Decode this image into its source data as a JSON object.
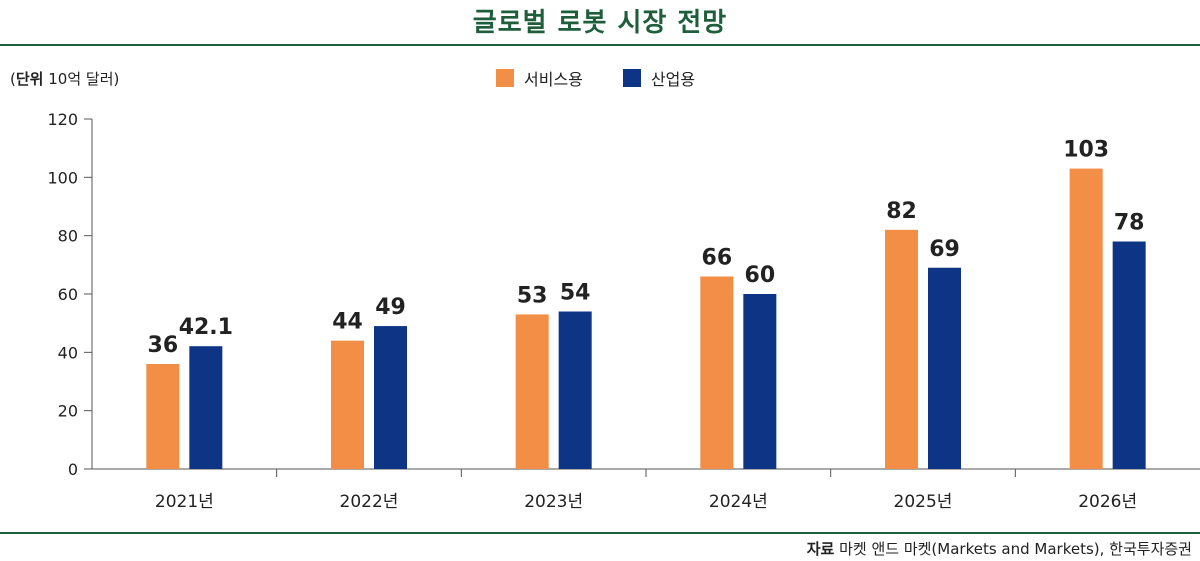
{
  "title": "글로벌 로봇 시장 전망",
  "unit": {
    "bold": "단위",
    "rest": " 10억 달러"
  },
  "source": {
    "bold": "자료",
    "rest": " 마켓 앤드 마켓(Markets and Markets), 한국투자증권"
  },
  "colors": {
    "service": "#f28e45",
    "industrial": "#0e3486",
    "accent": "#1e5e3a"
  },
  "chart_data": {
    "type": "bar",
    "title": "글로벌 로봇 시장 전망",
    "ylabel": "(단위 10억 달러)",
    "xlabel": "",
    "categories": [
      "2021년",
      "2022년",
      "2023년",
      "2024년",
      "2025년",
      "2026년"
    ],
    "series": [
      {
        "name": "서비스용",
        "values": [
          36,
          44,
          53,
          66,
          82,
          103
        ],
        "labels": [
          "36",
          "44",
          "53",
          "66",
          "82",
          "103"
        ]
      },
      {
        "name": "산업용",
        "values": [
          42.1,
          49,
          54,
          60,
          69,
          78
        ],
        "labels": [
          "42.1",
          "49",
          "54",
          "60",
          "69",
          "78"
        ]
      }
    ],
    "ylim": [
      0,
      120
    ],
    "yticks": [
      0,
      20,
      40,
      60,
      80,
      100,
      120
    ],
    "grid": false,
    "legend": "top-center"
  }
}
